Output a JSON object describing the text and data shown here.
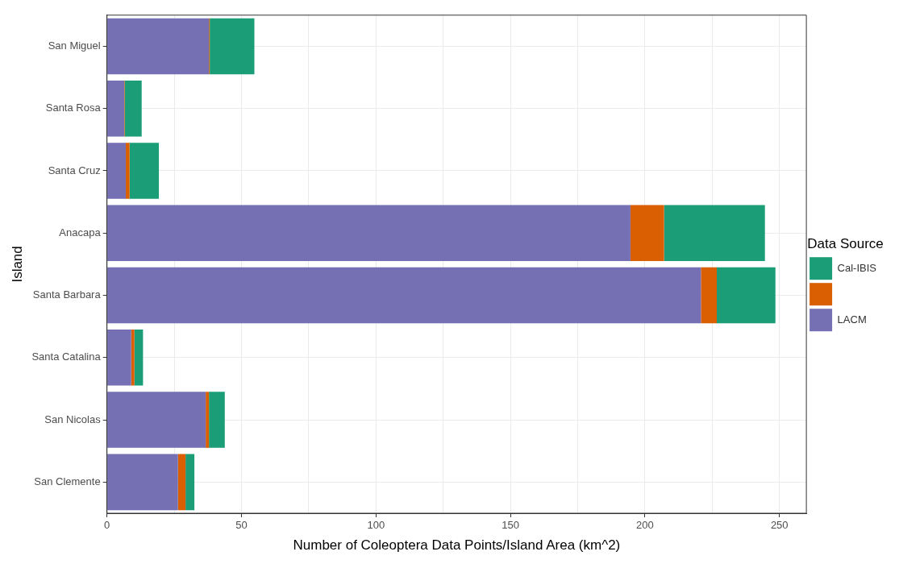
{
  "chart_data": {
    "type": "bar",
    "orientation": "horizontal",
    "stacked": true,
    "categories": [
      "San Miguel",
      "Santa Rosa",
      "Santa Cruz",
      "Anacapa",
      "Santa Barbara",
      "Santa Catalina",
      "San Nicolas",
      "San Clemente"
    ],
    "series": [
      {
        "name": "LACM",
        "color": "#7570b3",
        "values": [
          37.9,
          6.4,
          7.0,
          194.6,
          220.8,
          9.0,
          36.7,
          26.4
        ]
      },
      {
        "color": "#d95f02",
        "values": [
          0.3,
          0.2,
          1.4,
          12.5,
          5.9,
          1.2,
          1.2,
          2.8
        ]
      },
      {
        "name": "Cal-IBIS",
        "color": "#1b9e77",
        "values": [
          16.6,
          6.3,
          10.9,
          37.5,
          21.8,
          3.2,
          5.9,
          3.3
        ]
      }
    ],
    "xlabel": "Number of Coleoptera Data Points/Island Area (km^2)",
    "ylabel": "Island",
    "legend_title": "Data Source",
    "xlim": [
      0,
      260
    ],
    "xticks": [
      0,
      {
        "value": 25,
        "label": null
      },
      50,
      {
        "value": 75,
        "label": null
      },
      100,
      {
        "value": 125,
        "label": null
      },
      150,
      {
        "value": 175,
        "label": null
      },
      200,
      {
        "value": 225,
        "label": null
      },
      250
    ],
    "grid": true,
    "legend": "right"
  }
}
